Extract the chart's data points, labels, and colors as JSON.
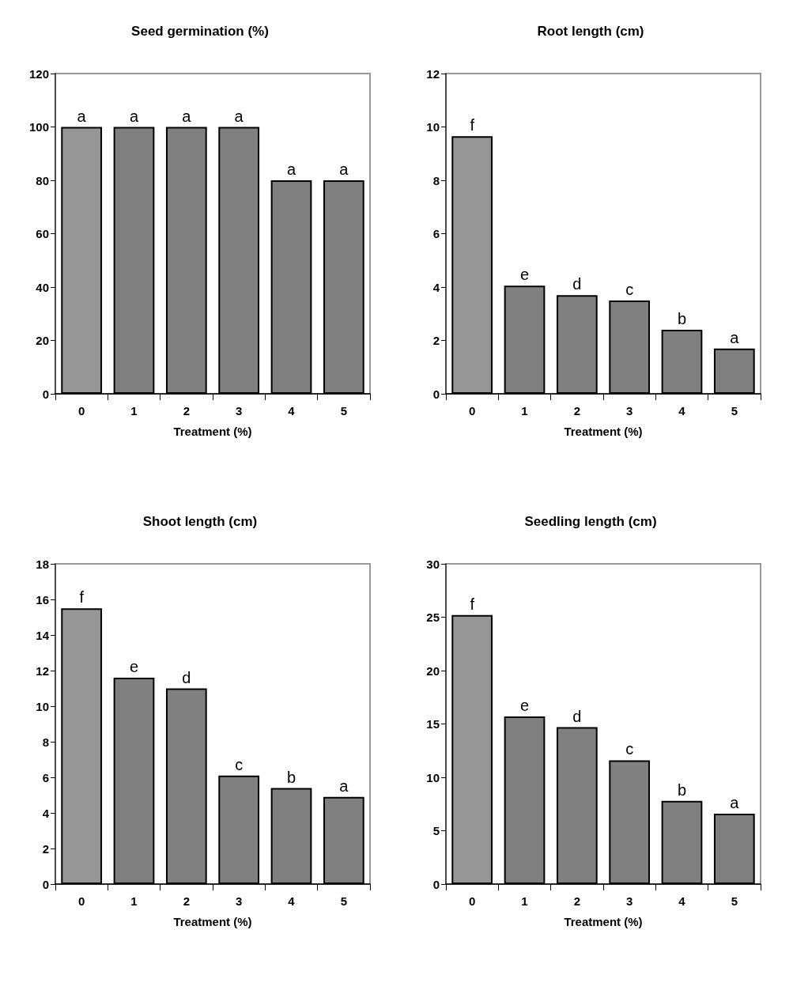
{
  "chart_data": [
    {
      "type": "bar",
      "title": "Seed germination (%)",
      "xlabel": "Treatment (%)",
      "categories": [
        "0",
        "1",
        "2",
        "3",
        "4",
        "5"
      ],
      "values": [
        100,
        100,
        100,
        100,
        80,
        80
      ],
      "colors": [
        "#969696",
        "#808080",
        "#808080",
        "#808080",
        "#808080",
        "#808080"
      ],
      "ylim": [
        0,
        120
      ],
      "yticks": [
        0,
        20,
        40,
        60,
        80,
        100,
        120
      ],
      "grid": false,
      "annotations": [
        {
          "text": "a",
          "x": "0",
          "y": 100
        },
        {
          "text": "a",
          "x": "1",
          "y": 100
        },
        {
          "text": "a",
          "x": "2",
          "y": 100
        },
        {
          "text": "a",
          "x": "3",
          "y": 100
        },
        {
          "text": "a",
          "x": "4",
          "y": 80
        },
        {
          "text": "a",
          "x": "5",
          "y": 80
        }
      ]
    },
    {
      "type": "bar",
      "title": "Root length (cm)",
      "xlabel": "Treatment (%)",
      "categories": [
        "0",
        "1",
        "2",
        "3",
        "4",
        "5"
      ],
      "values": [
        9.65,
        4.05,
        3.7,
        3.5,
        2.4,
        1.7
      ],
      "colors": [
        "#969696",
        "#808080",
        "#808080",
        "#808080",
        "#808080",
        "#808080"
      ],
      "ylim": [
        0,
        12
      ],
      "yticks": [
        0,
        2,
        4,
        6,
        8,
        10,
        12
      ],
      "grid": false,
      "annotations": [
        {
          "text": "f",
          "x": "0",
          "y": 9.65
        },
        {
          "text": "e",
          "x": "1",
          "y": 4.05
        },
        {
          "text": "d",
          "x": "2",
          "y": 3.7
        },
        {
          "text": "c",
          "x": "3",
          "y": 3.5
        },
        {
          "text": "b",
          "x": "4",
          "y": 2.4
        },
        {
          "text": "a",
          "x": "5",
          "y": 1.7
        }
      ]
    },
    {
      "type": "bar",
      "title": "Shoot length (cm)",
      "xlabel": "Treatment (%)",
      "categories": [
        "0",
        "1",
        "2",
        "3",
        "4",
        "5"
      ],
      "values": [
        15.5,
        11.6,
        11.0,
        6.1,
        5.4,
        4.9
      ],
      "colors": [
        "#969696",
        "#808080",
        "#808080",
        "#808080",
        "#808080",
        "#808080"
      ],
      "ylim": [
        0,
        18
      ],
      "yticks": [
        0,
        2,
        4,
        6,
        8,
        10,
        12,
        14,
        16,
        18
      ],
      "grid": false,
      "annotations": [
        {
          "text": "f",
          "x": "0",
          "y": 15.5
        },
        {
          "text": "e",
          "x": "1",
          "y": 11.6
        },
        {
          "text": "d",
          "x": "2",
          "y": 11.0
        },
        {
          "text": "c",
          "x": "3",
          "y": 6.1
        },
        {
          "text": "b",
          "x": "4",
          "y": 5.4
        },
        {
          "text": "a",
          "x": "5",
          "y": 4.9
        }
      ]
    },
    {
      "type": "bar",
      "title": "Seedling length (cm)",
      "xlabel": "Treatment (%)",
      "categories": [
        "0",
        "1",
        "2",
        "3",
        "4",
        "5"
      ],
      "values": [
        25.2,
        15.7,
        14.7,
        11.6,
        7.8,
        6.6
      ],
      "colors": [
        "#969696",
        "#808080",
        "#808080",
        "#808080",
        "#808080",
        "#808080"
      ],
      "ylim": [
        0,
        30
      ],
      "yticks": [
        0,
        5,
        10,
        15,
        20,
        25,
        30
      ],
      "grid": false,
      "annotations": [
        {
          "text": "f",
          "x": "0",
          "y": 25.2
        },
        {
          "text": "e",
          "x": "1",
          "y": 15.7
        },
        {
          "text": "d",
          "x": "2",
          "y": 14.7
        },
        {
          "text": "c",
          "x": "3",
          "y": 11.6
        },
        {
          "text": "b",
          "x": "4",
          "y": 7.8
        },
        {
          "text": "a",
          "x": "5",
          "y": 6.6
        }
      ]
    }
  ]
}
